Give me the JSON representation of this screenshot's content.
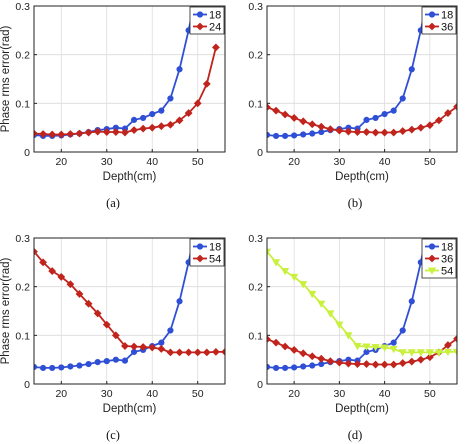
{
  "colors": {
    "18": "#2f4fd6",
    "24": "#c0241d",
    "36": "#c0241d",
    "54_c": "#c0241d",
    "54_d": "#c8f03c",
    "grid": "#dcdcdc",
    "axis": "#222222"
  },
  "chart_data": [
    {
      "type": "line",
      "caption": "(a)",
      "xlabel": "Depth(cm)",
      "ylabel": "Phase rms error(rad)",
      "xlim": [
        14,
        56
      ],
      "ylim": [
        0,
        0.3
      ],
      "xticks": [
        "20",
        "30",
        "40",
        "50"
      ],
      "yticks": [
        "0",
        "0.1",
        "0.2",
        "0.3"
      ],
      "grid": true,
      "legend_position": "top-right",
      "series": [
        {
          "name": "18",
          "color_key": "18",
          "marker": "circle",
          "x": [
            14,
            16,
            18,
            20,
            22,
            24,
            26,
            28,
            30,
            32,
            34,
            36,
            38,
            40,
            42,
            44,
            46,
            48,
            50
          ],
          "y": [
            0.035,
            0.033,
            0.033,
            0.034,
            0.036,
            0.038,
            0.041,
            0.045,
            0.047,
            0.05,
            0.048,
            0.066,
            0.07,
            0.078,
            0.085,
            0.11,
            0.17,
            0.25,
            0.34
          ]
        },
        {
          "name": "24",
          "color_key": "24",
          "marker": "diamond",
          "x": [
            14,
            16,
            18,
            20,
            22,
            24,
            26,
            28,
            30,
            32,
            34,
            36,
            38,
            40,
            42,
            44,
            46,
            48,
            50,
            52,
            54
          ],
          "y": [
            0.038,
            0.037,
            0.036,
            0.036,
            0.037,
            0.038,
            0.04,
            0.042,
            0.041,
            0.041,
            0.04,
            0.045,
            0.048,
            0.05,
            0.053,
            0.056,
            0.065,
            0.08,
            0.1,
            0.14,
            0.215
          ]
        }
      ]
    },
    {
      "type": "line",
      "caption": "(b)",
      "xlabel": "Depth(cm)",
      "ylabel": "",
      "xlim": [
        14,
        56
      ],
      "ylim": [
        0,
        0.3
      ],
      "xticks": [
        "20",
        "30",
        "40",
        "50"
      ],
      "yticks": [
        "0",
        "0.1",
        "0.2",
        "0.3"
      ],
      "grid": true,
      "legend_position": "top-right",
      "series": [
        {
          "name": "18",
          "color_key": "18",
          "marker": "circle",
          "x": [
            14,
            16,
            18,
            20,
            22,
            24,
            26,
            28,
            30,
            32,
            34,
            36,
            38,
            40,
            42,
            44,
            46,
            48,
            50
          ],
          "y": [
            0.035,
            0.033,
            0.033,
            0.034,
            0.036,
            0.038,
            0.041,
            0.045,
            0.047,
            0.05,
            0.048,
            0.066,
            0.07,
            0.078,
            0.085,
            0.11,
            0.17,
            0.25,
            0.34
          ]
        },
        {
          "name": "36",
          "color_key": "36",
          "marker": "diamond",
          "x": [
            14,
            16,
            18,
            20,
            22,
            24,
            26,
            28,
            30,
            32,
            34,
            36,
            38,
            40,
            42,
            44,
            46,
            48,
            50,
            52,
            54,
            56
          ],
          "y": [
            0.092,
            0.085,
            0.077,
            0.07,
            0.063,
            0.057,
            0.052,
            0.047,
            0.044,
            0.042,
            0.041,
            0.041,
            0.04,
            0.04,
            0.04,
            0.043,
            0.046,
            0.05,
            0.055,
            0.065,
            0.08,
            0.093
          ]
        }
      ]
    },
    {
      "type": "line",
      "caption": "(c)",
      "xlabel": "Depth(cm)",
      "ylabel": "Phase rms error(rad)",
      "xlim": [
        14,
        56
      ],
      "ylim": [
        0,
        0.3
      ],
      "xticks": [
        "20",
        "30",
        "40",
        "50"
      ],
      "yticks": [
        "0",
        "0.1",
        "0.2",
        "0.3"
      ],
      "grid": true,
      "legend_position": "top-right",
      "series": [
        {
          "name": "18",
          "color_key": "18",
          "marker": "circle",
          "x": [
            14,
            16,
            18,
            20,
            22,
            24,
            26,
            28,
            30,
            32,
            34,
            36,
            38,
            40,
            42,
            44,
            46,
            48,
            50
          ],
          "y": [
            0.035,
            0.033,
            0.033,
            0.034,
            0.036,
            0.038,
            0.041,
            0.045,
            0.047,
            0.05,
            0.048,
            0.066,
            0.07,
            0.078,
            0.085,
            0.11,
            0.17,
            0.25,
            0.34
          ]
        },
        {
          "name": "54",
          "color_key": "54_c",
          "marker": "diamond",
          "x": [
            14,
            16,
            18,
            20,
            22,
            24,
            26,
            28,
            30,
            32,
            34,
            36,
            38,
            40,
            42,
            44,
            46,
            48,
            50,
            52,
            54,
            56
          ],
          "y": [
            0.272,
            0.25,
            0.232,
            0.22,
            0.205,
            0.185,
            0.165,
            0.145,
            0.122,
            0.1,
            0.078,
            0.077,
            0.076,
            0.075,
            0.072,
            0.065,
            0.065,
            0.065,
            0.065,
            0.065,
            0.066,
            0.066
          ]
        }
      ]
    },
    {
      "type": "line",
      "caption": "(d)",
      "xlabel": "Depth(cm)",
      "ylabel": "",
      "xlim": [
        14,
        56
      ],
      "ylim": [
        0,
        0.3
      ],
      "xticks": [
        "20",
        "30",
        "40",
        "50"
      ],
      "yticks": [
        "0",
        "0.1",
        "0.2",
        "0.3"
      ],
      "grid": true,
      "legend_position": "top-right",
      "series": [
        {
          "name": "18",
          "color_key": "18",
          "marker": "circle",
          "x": [
            14,
            16,
            18,
            20,
            22,
            24,
            26,
            28,
            30,
            32,
            34,
            36,
            38,
            40,
            42,
            44,
            46,
            48,
            50
          ],
          "y": [
            0.035,
            0.033,
            0.033,
            0.034,
            0.036,
            0.038,
            0.041,
            0.045,
            0.047,
            0.05,
            0.048,
            0.066,
            0.07,
            0.078,
            0.085,
            0.11,
            0.17,
            0.25,
            0.34
          ]
        },
        {
          "name": "36",
          "color_key": "36",
          "marker": "diamond",
          "x": [
            14,
            16,
            18,
            20,
            22,
            24,
            26,
            28,
            30,
            32,
            34,
            36,
            38,
            40,
            42,
            44,
            46,
            48,
            50,
            52,
            54,
            56
          ],
          "y": [
            0.092,
            0.085,
            0.077,
            0.07,
            0.063,
            0.057,
            0.052,
            0.047,
            0.044,
            0.042,
            0.041,
            0.041,
            0.04,
            0.04,
            0.04,
            0.043,
            0.046,
            0.05,
            0.055,
            0.065,
            0.08,
            0.093
          ]
        },
        {
          "name": "54",
          "color_key": "54_d",
          "marker": "triangle-down",
          "x": [
            14,
            16,
            18,
            20,
            22,
            24,
            26,
            28,
            30,
            32,
            34,
            36,
            38,
            40,
            42,
            44,
            46,
            48,
            50,
            52,
            54,
            56
          ],
          "y": [
            0.272,
            0.25,
            0.232,
            0.22,
            0.205,
            0.185,
            0.165,
            0.145,
            0.122,
            0.1,
            0.078,
            0.077,
            0.076,
            0.075,
            0.072,
            0.065,
            0.065,
            0.065,
            0.065,
            0.065,
            0.066,
            0.066
          ]
        }
      ]
    }
  ]
}
